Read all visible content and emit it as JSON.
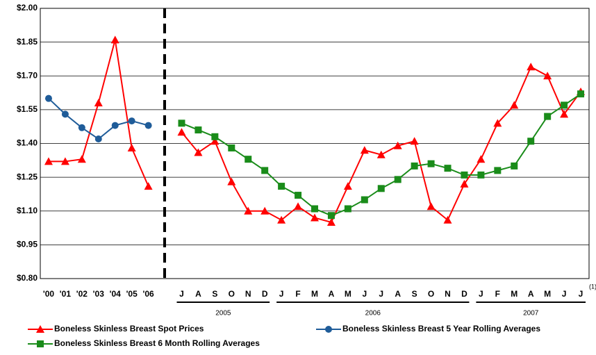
{
  "chart_data": {
    "type": "line",
    "categories": [
      "'00",
      "'01",
      "'02",
      "'03",
      "'04",
      "'05",
      "'06",
      null,
      "J",
      "A",
      "S",
      "O",
      "N",
      "D",
      "J",
      "F",
      "M",
      "A",
      "M",
      "J",
      "J",
      "A",
      "S",
      "O",
      "N",
      "D",
      "J",
      "F",
      "M",
      "A",
      "M",
      "J",
      "J"
    ],
    "year_labels": [
      "2005",
      "2006",
      "2007"
    ],
    "footnote_marker": "(1)",
    "series": [
      {
        "name": "Boneless Skinless Breast Spot Prices",
        "color": "#ff0000",
        "marker": "triangle",
        "values": [
          1.32,
          1.32,
          1.33,
          1.58,
          1.86,
          1.38,
          1.21,
          null,
          1.45,
          1.36,
          1.41,
          1.23,
          1.1,
          1.1,
          1.06,
          1.12,
          1.07,
          1.05,
          1.21,
          1.37,
          1.35,
          1.39,
          1.41,
          1.12,
          1.06,
          1.22,
          1.33,
          1.49,
          1.57,
          1.74,
          1.7,
          1.53,
          1.63
        ]
      },
      {
        "name": "Boneless Skinless Breast 5 Year Rolling Averages",
        "color": "#1f5c99",
        "marker": "circle",
        "values": [
          1.6,
          1.53,
          1.47,
          1.42,
          1.48,
          1.5,
          1.48,
          null,
          null,
          null,
          null,
          null,
          null,
          null,
          null,
          null,
          null,
          null,
          null,
          null,
          null,
          null,
          null,
          null,
          null,
          null,
          null,
          null,
          null,
          null,
          null,
          null,
          null
        ]
      },
      {
        "name": "Boneless Skinless Breast 6 Month Rolling Averages",
        "color": "#1a8c1a",
        "marker": "square",
        "values": [
          null,
          null,
          null,
          null,
          null,
          null,
          null,
          null,
          1.49,
          1.46,
          1.43,
          1.38,
          1.33,
          1.28,
          1.21,
          1.17,
          1.11,
          1.08,
          1.11,
          1.15,
          1.2,
          1.24,
          1.3,
          1.31,
          1.29,
          1.26,
          1.26,
          1.28,
          1.3,
          1.41,
          1.52,
          1.57,
          1.62
        ]
      }
    ],
    "ylim": [
      0.8,
      2.0
    ],
    "yticks": [
      {
        "value": 0.8,
        "label": "$0.80"
      },
      {
        "value": 0.95,
        "label": "$0.95"
      },
      {
        "value": 1.1,
        "label": "$1.10"
      },
      {
        "value": 1.25,
        "label": "$1.25"
      },
      {
        "value": 1.4,
        "label": "$1.40"
      },
      {
        "value": 1.55,
        "label": "$1.55"
      },
      {
        "value": 1.7,
        "label": "$1.70"
      },
      {
        "value": 1.85,
        "label": "$1.85"
      },
      {
        "value": 2.0,
        "label": "$2.00"
      }
    ],
    "grid": true
  }
}
